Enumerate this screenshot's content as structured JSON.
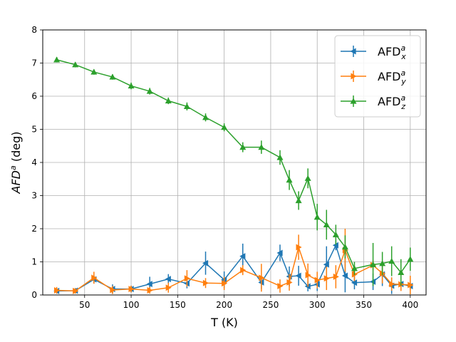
{
  "chart_data": {
    "type": "line",
    "xlabel": "T (K)",
    "ylabel_main": "AFD",
    "ylabel_sup": "a",
    "ylabel_rest": " (deg)",
    "xlim": [
      5,
      417
    ],
    "ylim": [
      0,
      8
    ],
    "xticks": [
      50,
      100,
      150,
      200,
      250,
      300,
      350,
      400
    ],
    "yticks": [
      0,
      1,
      2,
      3,
      4,
      5,
      6,
      7,
      8
    ],
    "grid": true,
    "legend_position": "top-right",
    "series": [
      {
        "name": "AFD",
        "name_sup": "a",
        "name_sub": "x",
        "color": "#1f77b4",
        "marker": "triangle-left",
        "x": [
          20,
          40,
          60,
          80,
          100,
          120,
          140,
          160,
          180,
          200,
          220,
          240,
          260,
          270,
          280,
          290,
          300,
          310,
          320,
          330,
          340,
          360,
          370,
          380,
          390,
          400
        ],
        "y": [
          0.12,
          0.13,
          0.47,
          0.18,
          0.18,
          0.33,
          0.48,
          0.35,
          0.96,
          0.46,
          1.17,
          0.38,
          1.27,
          0.56,
          0.58,
          0.26,
          0.32,
          0.92,
          1.5,
          0.58,
          0.37,
          0.4,
          0.62,
          0.28,
          0.33,
          0.27
        ],
        "err": [
          0.08,
          0.08,
          0.12,
          0.14,
          0.1,
          0.22,
          0.15,
          0.15,
          0.35,
          0.25,
          0.38,
          0.2,
          0.25,
          0.3,
          0.3,
          0.15,
          0.2,
          0.55,
          0.15,
          0.5,
          0.2,
          0.25,
          0.35,
          0.25,
          0.15,
          0.12
        ]
      },
      {
        "name": "AFD",
        "name_sup": "a",
        "name_sub": "y",
        "color": "#ff7f0e",
        "marker": "triangle-right",
        "x": [
          20,
          40,
          60,
          80,
          100,
          120,
          140,
          160,
          180,
          200,
          220,
          240,
          260,
          270,
          280,
          290,
          300,
          310,
          320,
          330,
          340,
          360,
          370,
          380,
          390,
          400
        ],
        "y": [
          0.14,
          0.12,
          0.52,
          0.15,
          0.18,
          0.14,
          0.22,
          0.5,
          0.36,
          0.35,
          0.75,
          0.52,
          0.27,
          0.38,
          1.44,
          0.6,
          0.45,
          0.5,
          0.55,
          1.35,
          0.62,
          0.9,
          0.65,
          0.33,
          0.32,
          0.3
        ],
        "err": [
          0.1,
          0.08,
          0.18,
          0.12,
          0.1,
          0.1,
          0.15,
          0.25,
          0.15,
          0.2,
          0.15,
          0.42,
          0.2,
          0.25,
          0.38,
          0.35,
          0.25,
          0.35,
          0.35,
          0.65,
          0.2,
          0.15,
          0.3,
          0.2,
          0.2,
          0.28
        ]
      },
      {
        "name": "AFD",
        "name_sup": "a",
        "name_sub": "z",
        "color": "#2ca02c",
        "marker": "triangle-up",
        "x": [
          20,
          40,
          60,
          80,
          100,
          120,
          140,
          160,
          180,
          200,
          220,
          240,
          260,
          270,
          280,
          290,
          300,
          310,
          320,
          330,
          340,
          360,
          370,
          380,
          390,
          400
        ],
        "y": [
          7.1,
          6.95,
          6.73,
          6.58,
          6.31,
          6.15,
          5.86,
          5.69,
          5.36,
          5.06,
          4.46,
          4.46,
          4.15,
          3.47,
          2.85,
          3.52,
          2.35,
          2.12,
          1.82,
          1.45,
          0.8,
          0.92,
          0.95,
          1.02,
          0.68,
          1.08
        ],
        "err": [
          0.08,
          0.08,
          0.08,
          0.08,
          0.1,
          0.1,
          0.1,
          0.12,
          0.12,
          0.12,
          0.15,
          0.2,
          0.22,
          0.3,
          0.28,
          0.3,
          0.4,
          0.45,
          0.3,
          0.35,
          0.2,
          0.65,
          0.35,
          0.45,
          0.4,
          0.35
        ]
      }
    ]
  }
}
